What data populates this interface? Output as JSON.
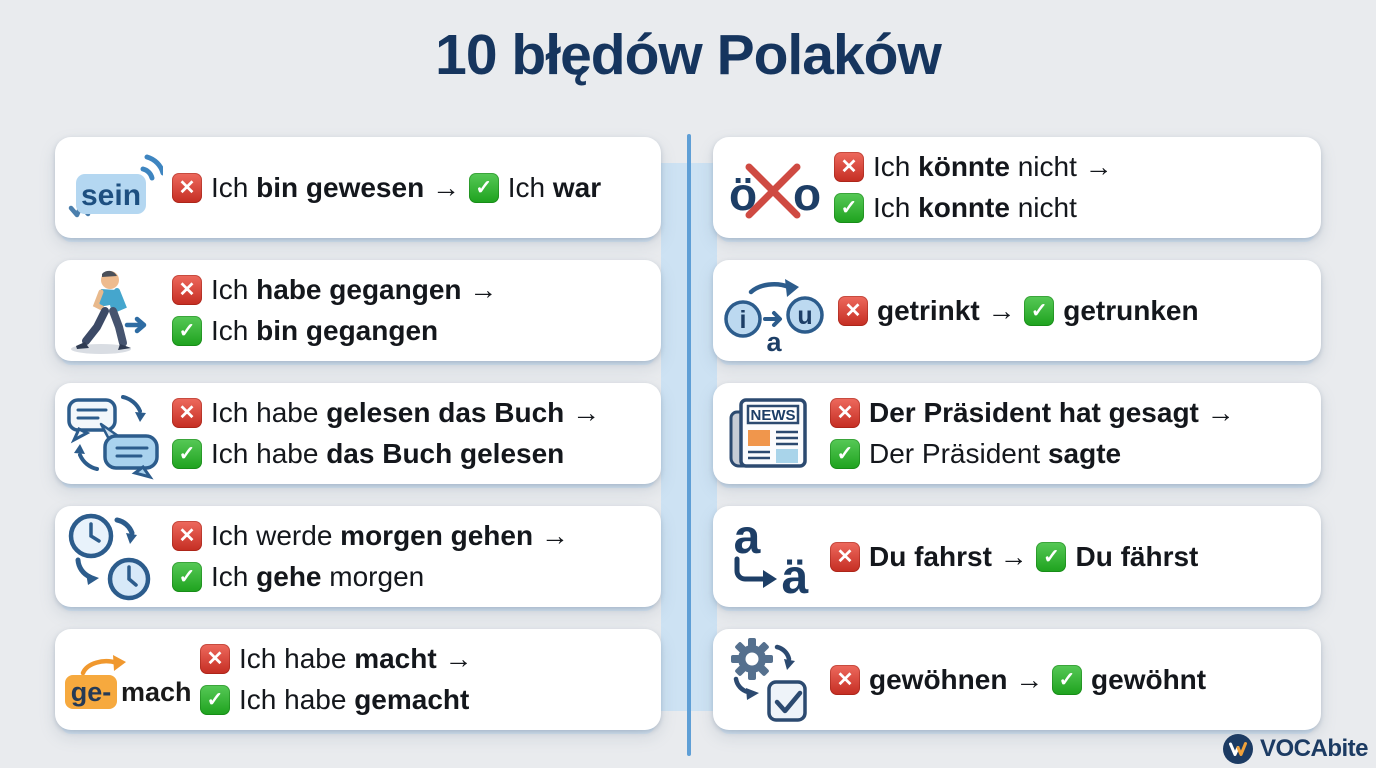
{
  "title": "10 błędów Polaków",
  "logo": {
    "brand": "VOCAbite"
  },
  "colors": {
    "title_navy": "#16355e",
    "wrong_red": "#d0342a",
    "correct_green": "#2aa52a",
    "divider_blue": "#5f9fd6",
    "band_blue": "#cde2f3",
    "card_white": "#ffffff",
    "ge_box_orange": "#f6a93e"
  },
  "cards": [
    {
      "icon": "sein-speech-bubble-icon",
      "column": "left",
      "lines": [
        [
          {
            "badge": "x"
          },
          {
            "t": "Ich ",
            "b": false
          },
          {
            "t": "bin gewesen",
            "b": true
          },
          {
            "t": " → ",
            "b": false
          },
          {
            "badge": "check"
          },
          {
            "t": "Ich ",
            "b": false
          },
          {
            "t": "war",
            "b": true
          }
        ]
      ]
    },
    {
      "icon": "walking-person-icon",
      "column": "left",
      "lines": [
        [
          {
            "badge": "x"
          },
          {
            "t": "Ich ",
            "b": false
          },
          {
            "t": "habe gegangen",
            "b": true
          },
          {
            "t": " →",
            "b": false
          }
        ],
        [
          {
            "badge": "check"
          },
          {
            "t": "Ich ",
            "b": false
          },
          {
            "t": "bin gegangen",
            "b": true
          }
        ]
      ]
    },
    {
      "icon": "swap-speech-bubbles-icon",
      "column": "left",
      "lines": [
        [
          {
            "badge": "x"
          },
          {
            "t": "Ich habe ",
            "b": false
          },
          {
            "t": "gelesen das Buch",
            "b": true
          },
          {
            "t": " →",
            "b": false
          }
        ],
        [
          {
            "badge": "check"
          },
          {
            "t": "Ich habe ",
            "b": false
          },
          {
            "t": "das Buch gelesen",
            "b": true
          }
        ]
      ]
    },
    {
      "icon": "clocks-time-icon",
      "column": "left",
      "lines": [
        [
          {
            "badge": "x"
          },
          {
            "t": "Ich werde ",
            "b": false
          },
          {
            "t": "morgen gehen",
            "b": true
          },
          {
            "t": " →",
            "b": false
          }
        ],
        [
          {
            "badge": "check"
          },
          {
            "t": "Ich ",
            "b": false
          },
          {
            "t": "gehe",
            "b": true
          },
          {
            "t": " morgen",
            "b": false
          }
        ]
      ]
    },
    {
      "icon": "ge-prefix-icon",
      "column": "left",
      "lines": [
        [
          {
            "badge": "x"
          },
          {
            "t": "Ich habe ",
            "b": false
          },
          {
            "t": "macht",
            "b": true
          },
          {
            "t": " →",
            "b": false
          }
        ],
        [
          {
            "badge": "check"
          },
          {
            "t": "Ich habe ",
            "b": false
          },
          {
            "t": "gemacht",
            "b": true
          }
        ]
      ]
    },
    {
      "icon": "umlaut-crossed-icon",
      "column": "right",
      "lines": [
        [
          {
            "badge": "x"
          },
          {
            "t": "Ich ",
            "b": false
          },
          {
            "t": "könnte",
            "b": true
          },
          {
            "t": " nicht →",
            "b": false
          }
        ],
        [
          {
            "badge": "check"
          },
          {
            "t": "Ich ",
            "b": false
          },
          {
            "t": "konnte",
            "b": true
          },
          {
            "t": " nicht",
            "b": false
          }
        ]
      ]
    },
    {
      "icon": "vowel-change-icon",
      "column": "right",
      "lines": [
        [
          {
            "badge": "x"
          },
          {
            "t": "getrinkt",
            "b": true
          },
          {
            "t": " → ",
            "b": false
          },
          {
            "badge": "check"
          },
          {
            "t": "getrunken",
            "b": true
          }
        ]
      ]
    },
    {
      "icon": "newspaper-icon",
      "column": "right",
      "lines": [
        [
          {
            "badge": "x"
          },
          {
            "t": "Der Präsident hat gesagt",
            "b": true
          },
          {
            "t": " →",
            "b": false
          }
        ],
        [
          {
            "badge": "check"
          },
          {
            "t": "Der Präsident ",
            "b": false
          },
          {
            "t": "sagte",
            "b": true
          }
        ]
      ]
    },
    {
      "icon": "a-to-ae-icon",
      "column": "right",
      "lines": [
        [
          {
            "badge": "x"
          },
          {
            "t": "Du fahrst",
            "b": true
          },
          {
            "t": " → ",
            "b": false
          },
          {
            "badge": "check"
          },
          {
            "t": "Du fährst",
            "b": true
          }
        ]
      ]
    },
    {
      "icon": "gear-checkbox-icon",
      "column": "right",
      "lines": [
        [
          {
            "badge": "x"
          },
          {
            "t": "gewöhnen",
            "b": true
          },
          {
            "t": " → ",
            "b": false
          },
          {
            "badge": "check"
          },
          {
            "t": "gewöhnt",
            "b": true
          }
        ]
      ]
    }
  ]
}
